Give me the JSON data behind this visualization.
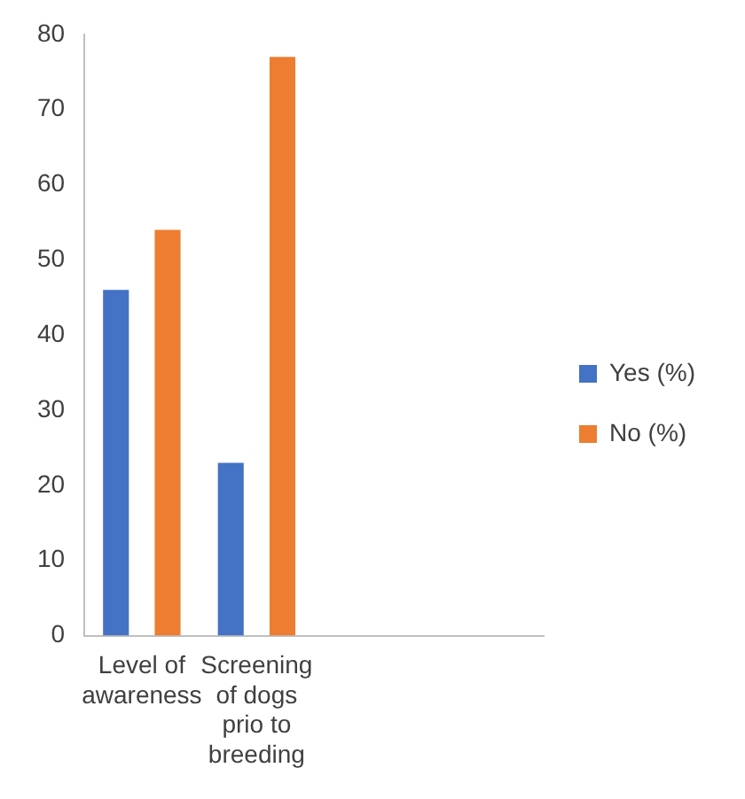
{
  "chart_data": {
    "type": "bar",
    "categories": [
      "Level of awareness",
      "Screening of dogs prio to breeding",
      null,
      null
    ],
    "series": [
      {
        "name": "Yes (%)",
        "color": "#4472c4",
        "values": [
          46,
          23,
          null,
          null
        ]
      },
      {
        "name": "No (%)",
        "color": "#ed7d31",
        "values": [
          54,
          77,
          null,
          null
        ]
      }
    ],
    "ylim": [
      0,
      80
    ],
    "yticks": [
      0,
      10,
      20,
      30,
      40,
      50,
      60,
      70,
      80
    ],
    "grid": false,
    "legend": "right"
  }
}
